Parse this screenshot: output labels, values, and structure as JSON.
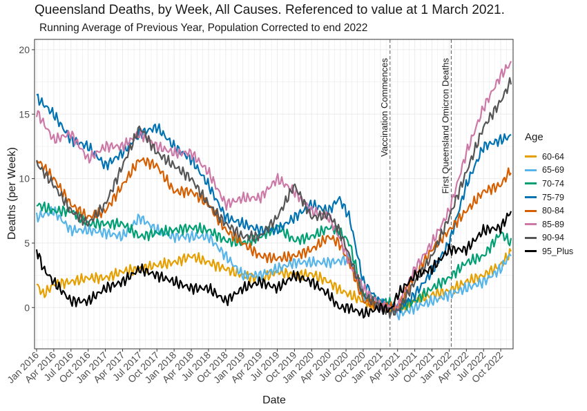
{
  "title": "Queensland Deaths, by Week, All Causes. Referenced to value at 1 March 2021.",
  "subtitle": "Running Average of Previous Year, Population Corrected to end 2022",
  "chart_data": {
    "type": "line",
    "xlabel": "Date",
    "ylabel": "Deaths (per Week)",
    "xlim": [
      2015.97,
      2022.93
    ],
    "ylim": [
      -3.2,
      20.8
    ],
    "y_ticks": [
      0,
      5,
      10,
      15,
      20
    ],
    "y_tick_labels": [
      "0",
      "5",
      "10",
      "15",
      "20"
    ],
    "x_ticks": [
      2016.0,
      2016.25,
      2016.5,
      2016.75,
      2017.0,
      2017.25,
      2017.5,
      2017.75,
      2018.0,
      2018.25,
      2018.5,
      2018.75,
      2019.0,
      2019.25,
      2019.5,
      2019.75,
      2020.0,
      2020.25,
      2020.5,
      2020.75,
      2021.0,
      2021.25,
      2021.5,
      2021.75,
      2022.0,
      2022.25,
      2022.5,
      2022.75
    ],
    "x_tick_labels": [
      "Jan 2016",
      "Apr 2016",
      "Jul 2016",
      "Oct 2016",
      "Jan 2017",
      "Apr 2017",
      "Jul 2017",
      "Oct 2017",
      "Jan 2018",
      "Apr 2018",
      "Jul 2018",
      "Oct 2018",
      "Jan 2019",
      "Apr 2019",
      "Jul 2019",
      "Oct 2019",
      "Jan 2020",
      "Apr 2020",
      "Jul 2020",
      "Oct 2020",
      "Jan 2021",
      "Apr 2021",
      "Jul 2021",
      "Oct 2021",
      "Jan 2022",
      "Apr 2022",
      "Jul 2022",
      "Oct 2022"
    ],
    "grid": true,
    "legend_title": "Age",
    "legend_position": "right",
    "annotations": [
      {
        "x": 2021.14,
        "label": "Vaccination Commences",
        "style": "dashed"
      },
      {
        "x": 2022.03,
        "label": "First Queensland Omicron Deaths",
        "style": "dashed"
      }
    ],
    "series": [
      {
        "name": "60-64",
        "color": "#E69F00",
        "x": [
          2016.0,
          2016.1,
          2016.25,
          2016.5,
          2016.75,
          2017.0,
          2017.25,
          2017.5,
          2017.75,
          2018.0,
          2018.25,
          2018.5,
          2018.75,
          2019.0,
          2019.25,
          2019.5,
          2019.75,
          2020.0,
          2020.25,
          2020.4,
          2020.55,
          2020.75,
          2021.0,
          2021.15,
          2021.25,
          2021.5,
          2021.75,
          2022.0,
          2022.25,
          2022.5,
          2022.75,
          2022.9
        ],
        "y": [
          1.8,
          1.0,
          1.8,
          2.0,
          2.3,
          2.3,
          2.8,
          3.0,
          3.3,
          3.5,
          4.0,
          3.5,
          3.0,
          2.5,
          2.2,
          2.8,
          2.5,
          2.6,
          2.0,
          1.4,
          1.0,
          0.5,
          0.0,
          0.0,
          -0.2,
          0.5,
          1.0,
          1.3,
          2.0,
          2.5,
          3.3,
          4.3
        ]
      },
      {
        "name": "65-69",
        "color": "#56B4E9",
        "x": [
          2016.0,
          2016.25,
          2016.5,
          2016.75,
          2017.0,
          2017.25,
          2017.5,
          2017.75,
          2018.0,
          2018.25,
          2018.5,
          2018.75,
          2019.0,
          2019.25,
          2019.5,
          2019.75,
          2020.0,
          2020.25,
          2020.4,
          2020.55,
          2020.75,
          2021.0,
          2021.15,
          2021.25,
          2021.5,
          2021.75,
          2022.0,
          2022.25,
          2022.5,
          2022.75,
          2022.9
        ],
        "y": [
          7.0,
          7.5,
          6.0,
          6.0,
          5.8,
          5.5,
          7.0,
          6.0,
          5.5,
          5.5,
          5.5,
          4.0,
          2.5,
          2.5,
          3.0,
          3.5,
          3.5,
          3.5,
          3.6,
          3.8,
          1.0,
          0.3,
          0.1,
          -0.6,
          0.0,
          0.5,
          1.0,
          1.5,
          2.0,
          3.0,
          4.2
        ]
      },
      {
        "name": "70-74",
        "color": "#009E73",
        "x": [
          2016.0,
          2016.25,
          2016.5,
          2016.75,
          2017.0,
          2017.25,
          2017.5,
          2017.75,
          2018.0,
          2018.25,
          2018.5,
          2018.75,
          2019.0,
          2019.25,
          2019.5,
          2019.75,
          2020.0,
          2020.25,
          2020.4,
          2020.55,
          2020.75,
          2021.0,
          2021.15,
          2021.25,
          2021.5,
          2021.75,
          2022.0,
          2022.25,
          2022.5,
          2022.75,
          2022.9
        ],
        "y": [
          8.0,
          7.5,
          7.5,
          6.5,
          6.5,
          6.5,
          5.5,
          5.8,
          6.0,
          6.2,
          6.0,
          5.2,
          5.0,
          5.5,
          6.3,
          5.2,
          5.5,
          6.2,
          6.0,
          5.0,
          1.0,
          0.5,
          0.3,
          0.0,
          0.5,
          1.5,
          2.3,
          3.5,
          4.0,
          5.8,
          5.0
        ]
      },
      {
        "name": "75-79",
        "color": "#0072B2",
        "x": [
          2016.0,
          2016.25,
          2016.5,
          2016.75,
          2017.0,
          2017.25,
          2017.5,
          2017.75,
          2018.0,
          2018.25,
          2018.5,
          2018.75,
          2019.0,
          2019.25,
          2019.5,
          2019.75,
          2020.0,
          2020.25,
          2020.4,
          2020.55,
          2020.75,
          2021.0,
          2021.15,
          2021.25,
          2021.5,
          2021.75,
          2022.0,
          2022.25,
          2022.5,
          2022.75,
          2022.9
        ],
        "y": [
          16.3,
          15.0,
          13.0,
          12.5,
          11.0,
          12.0,
          13.5,
          14.0,
          12.5,
          11.5,
          9.5,
          7.0,
          6.5,
          6.0,
          6.0,
          7.0,
          8.0,
          7.5,
          8.5,
          7.0,
          2.0,
          0.3,
          0.2,
          -0.2,
          1.0,
          2.8,
          5.0,
          9.5,
          12.5,
          13.0,
          13.3
        ]
      },
      {
        "name": "80-84",
        "color": "#D55E00",
        "x": [
          2016.0,
          2016.25,
          2016.5,
          2016.75,
          2017.0,
          2017.25,
          2017.5,
          2017.75,
          2018.0,
          2018.25,
          2018.5,
          2018.75,
          2019.0,
          2019.25,
          2019.5,
          2019.75,
          2020.0,
          2020.25,
          2020.4,
          2020.55,
          2020.75,
          2021.0,
          2021.15,
          2021.25,
          2021.5,
          2021.75,
          2022.0,
          2022.25,
          2022.5,
          2022.75,
          2022.9
        ],
        "y": [
          11.5,
          10.0,
          8.0,
          7.0,
          7.5,
          9.5,
          11.5,
          11.0,
          9.0,
          9.0,
          8.0,
          6.0,
          5.0,
          4.0,
          3.8,
          4.0,
          4.5,
          5.5,
          5.0,
          3.5,
          0.5,
          0.2,
          0.0,
          0.0,
          2.5,
          4.5,
          6.0,
          7.5,
          9.0,
          9.5,
          10.7
        ]
      },
      {
        "name": "85-89",
        "color": "#CC79A7",
        "x": [
          2016.0,
          2016.25,
          2016.5,
          2016.75,
          2017.0,
          2017.25,
          2017.5,
          2017.75,
          2018.0,
          2018.25,
          2018.5,
          2018.75,
          2019.0,
          2019.25,
          2019.5,
          2019.75,
          2020.0,
          2020.25,
          2020.4,
          2020.55,
          2020.75,
          2021.0,
          2021.15,
          2021.25,
          2021.5,
          2021.75,
          2022.0,
          2022.25,
          2022.5,
          2022.75,
          2022.9
        ],
        "y": [
          15.2,
          13.0,
          13.5,
          11.5,
          12.5,
          12.5,
          13.5,
          12.5,
          12.0,
          12.0,
          10.5,
          8.0,
          8.5,
          8.5,
          10.0,
          9.0,
          7.5,
          7.0,
          5.5,
          3.5,
          1.5,
          0.2,
          0.0,
          0.0,
          3.0,
          5.0,
          7.5,
          12.0,
          15.5,
          18.0,
          19.0
        ]
      },
      {
        "name": "90-94",
        "color": "#555555",
        "x": [
          2016.0,
          2016.25,
          2016.5,
          2016.75,
          2017.0,
          2017.25,
          2017.5,
          2017.75,
          2018.0,
          2018.25,
          2018.5,
          2018.75,
          2019.0,
          2019.25,
          2019.5,
          2019.75,
          2020.0,
          2020.25,
          2020.4,
          2020.55,
          2020.75,
          2021.0,
          2021.15,
          2021.25,
          2021.5,
          2021.75,
          2022.0,
          2022.25,
          2022.5,
          2022.75,
          2022.9
        ],
        "y": [
          11.2,
          9.5,
          7.5,
          6.5,
          8.0,
          11.0,
          14.0,
          12.0,
          11.0,
          10.0,
          8.0,
          6.5,
          5.5,
          5.5,
          7.0,
          9.5,
          7.0,
          7.2,
          6.0,
          4.0,
          1.0,
          0.0,
          -0.4,
          -0.3,
          2.0,
          4.0,
          7.0,
          10.5,
          14.0,
          16.0,
          17.6
        ]
      },
      {
        "name": "95_Plus",
        "color": "#000000",
        "x": [
          2016.0,
          2016.1,
          2016.25,
          2016.5,
          2016.75,
          2017.0,
          2017.25,
          2017.5,
          2017.75,
          2018.0,
          2018.25,
          2018.5,
          2018.75,
          2019.0,
          2019.25,
          2019.5,
          2019.75,
          2020.0,
          2020.25,
          2020.4,
          2020.55,
          2020.75,
          2021.0,
          2021.15,
          2021.25,
          2021.5,
          2021.75,
          2022.0,
          2022.25,
          2022.5,
          2022.75,
          2022.9
        ],
        "y": [
          4.5,
          3.0,
          2.0,
          0.5,
          0.5,
          1.5,
          2.0,
          3.0,
          2.5,
          2.0,
          1.5,
          1.5,
          0.5,
          1.5,
          2.0,
          1.5,
          2.5,
          2.0,
          1.0,
          0.0,
          0.0,
          -0.5,
          0.0,
          -0.2,
          1.0,
          2.5,
          3.0,
          4.5,
          4.5,
          6.0,
          6.2,
          7.5
        ]
      }
    ]
  }
}
